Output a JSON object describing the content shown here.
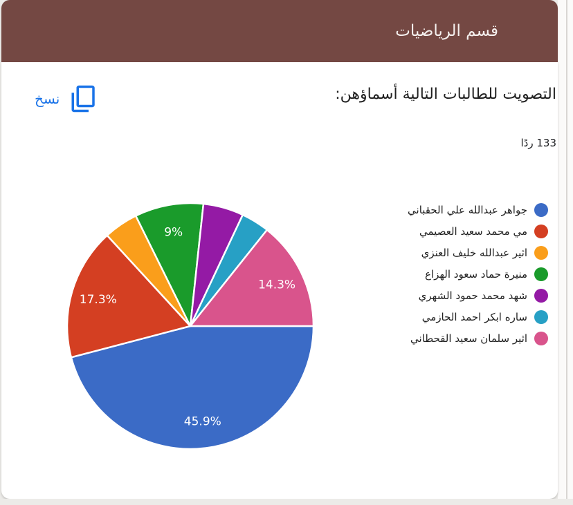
{
  "header": {
    "title": "قسم الرياضيات",
    "background": "#744843"
  },
  "copy_button": {
    "label": "نسخ",
    "color": "#1a73e8"
  },
  "question": {
    "title": "التصويت للطالبات التالية أسماؤهن:",
    "responses_count": "133 ردًا"
  },
  "chart_data": {
    "type": "pie",
    "legend_position": "right",
    "start_angle": "3-oclock",
    "direction": "clockwise",
    "total_responses": 133,
    "slices": [
      {
        "label": "جواهر عبدالله علي الحقباني",
        "value": 45.9,
        "display": "45.9%",
        "color": "#3b6bc6"
      },
      {
        "label": "مي محمد سعيد العصيمي",
        "value": 17.3,
        "display": "17.3%",
        "color": "#d43f22"
      },
      {
        "label": "اثير عبدالله خليف العنزي",
        "value": 4.5,
        "display": "",
        "color": "#fa9e1b"
      },
      {
        "label": "منيرة حماد سعود الهزاع",
        "value": 9.0,
        "display": "9%",
        "color": "#1a9b2b"
      },
      {
        "label": "شهد محمد حمود الشهري",
        "value": 5.3,
        "display": "",
        "color": "#941aa5"
      },
      {
        "label": "ساره ابكر احمد الحازمي",
        "value": 3.7,
        "display": "",
        "color": "#27a0c5"
      },
      {
        "label": "اثير سلمان سعيد القحطاني",
        "value": 14.3,
        "display": "14.3%",
        "color": "#d9548c"
      }
    ]
  }
}
